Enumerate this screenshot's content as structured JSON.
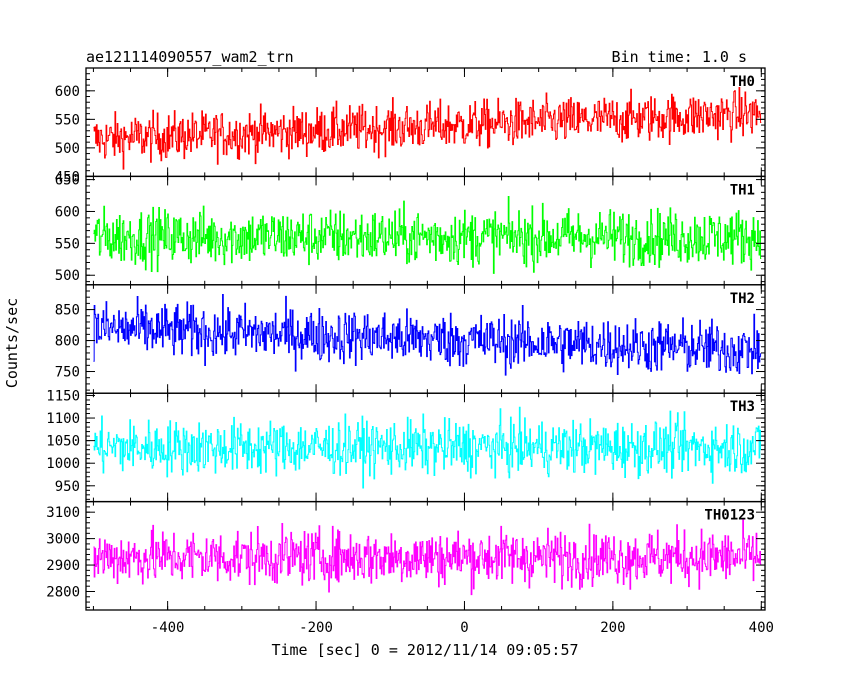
{
  "header": {
    "title": "ae121114090557_wam2_trn",
    "bin_time": "Bin time: 1.0 s"
  },
  "chart_data": {
    "type": "line",
    "xlabel": "Time [sec] 0 = 2012/11/14 09:05:57",
    "ylabel": "Counts/sec",
    "xlim": [
      -510,
      405
    ],
    "xticks": [
      -400,
      -200,
      0,
      200,
      400
    ],
    "x_data_range": [
      -500,
      400
    ],
    "bin_seconds": 1.0,
    "panels": [
      {
        "name": "TH0",
        "color": "#ff0000",
        "ylim": [
          450,
          640
        ],
        "yticks": [
          450,
          500,
          550,
          600
        ],
        "trend_start": 515,
        "trend_end": 560,
        "spread": 38
      },
      {
        "name": "TH1",
        "color": "#00ff00",
        "ylim": [
          485,
          655
        ],
        "yticks": [
          500,
          550,
          600,
          650
        ],
        "trend_start": 560,
        "trend_end": 560,
        "spread": 40
      },
      {
        "name": "TH2",
        "color": "#0000ff",
        "ylim": [
          715,
          890
        ],
        "yticks": [
          750,
          800,
          850
        ],
        "trend_start": 820,
        "trend_end": 785,
        "spread": 40
      },
      {
        "name": "TH3",
        "color": "#00ffff",
        "ylim": [
          915,
          1155
        ],
        "yticks": [
          950,
          1000,
          1050,
          1100,
          1150
        ],
        "trend_start": 1035,
        "trend_end": 1035,
        "spread": 55
      },
      {
        "name": "TH0123",
        "color": "#ff00ff",
        "ylim": [
          2730,
          3140
        ],
        "yticks": [
          2800,
          2900,
          3000,
          3100
        ],
        "trend_start": 2930,
        "trend_end": 2930,
        "spread": 95
      }
    ]
  }
}
